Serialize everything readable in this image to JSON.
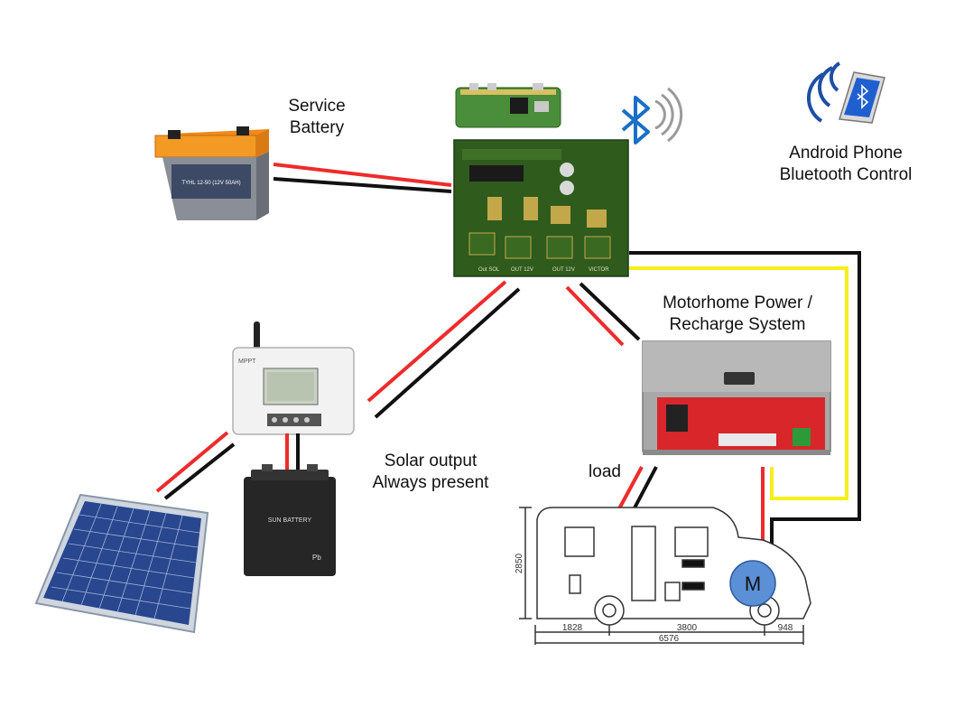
{
  "labels": {
    "service_battery": [
      "Service",
      "Battery"
    ],
    "android_phone": [
      "Android Phone",
      "Bluetooth Control"
    ],
    "motorhome_power": [
      "Motorhome Power  /",
      "Recharge System"
    ],
    "solar_output": [
      "Solar output",
      "Always present"
    ],
    "load": "load",
    "motor": "M"
  },
  "dimensions": {
    "height": "2850",
    "rear": "1828",
    "wheelbase": "3800",
    "front": "948",
    "total": "6576"
  },
  "device_markings": {
    "service_battery_model": "TYHL 12-50 (12V 50AH)",
    "board_terminals": [
      "Out SOL",
      "OUT 12V",
      "OUT 12V",
      "VICTOR"
    ],
    "controller_brand": "MPPT",
    "aux_battery_brand": "SUN BATTERY",
    "aux_battery_chem": "Pb"
  },
  "colors": {
    "wire_red": "#ee2b2b",
    "wire_black": "#111111",
    "wire_yellow": "#f7ef1c",
    "bluetooth": "#1a6fc4",
    "motor_fill": "#5b8fd6",
    "pcb_green": "#2f5b1d"
  }
}
